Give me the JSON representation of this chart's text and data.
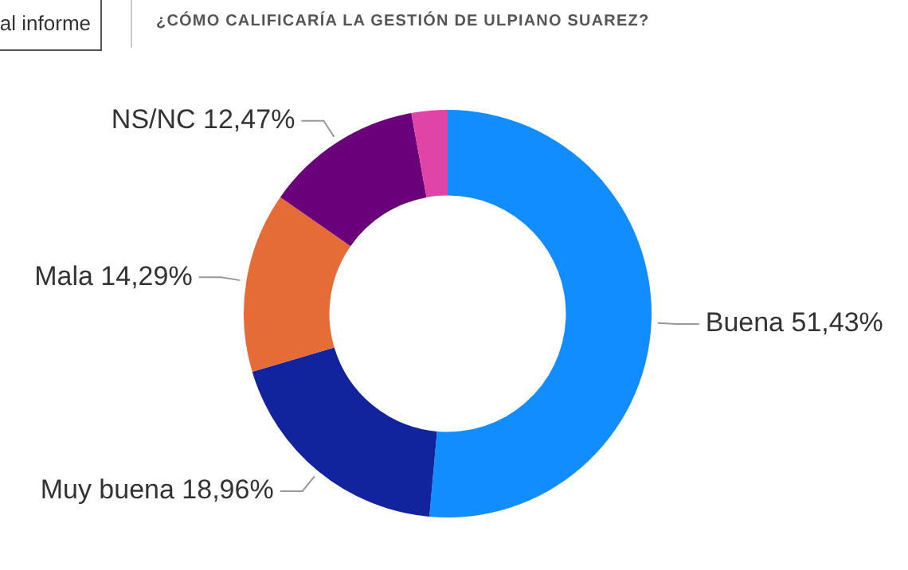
{
  "chart_data": {
    "type": "donut",
    "title": "¿CÓMO CALIFICARÍA LA GESTIÓN DE ULPIANO SUAREZ?",
    "categories": [
      "Buena",
      "Muy buena",
      "Mala",
      "NS/NC",
      null
    ],
    "values": [
      51.43,
      18.96,
      14.29,
      12.47,
      2.85
    ],
    "colors": [
      "#118dff",
      "#12239e",
      "#e66c37",
      "#6b007b",
      "#e044a7"
    ],
    "value_labels": [
      "51,43%",
      "18,96%",
      "14,29%",
      "12,47%",
      null
    ],
    "annotations": [
      "al informe"
    ],
    "legend": false
  }
}
